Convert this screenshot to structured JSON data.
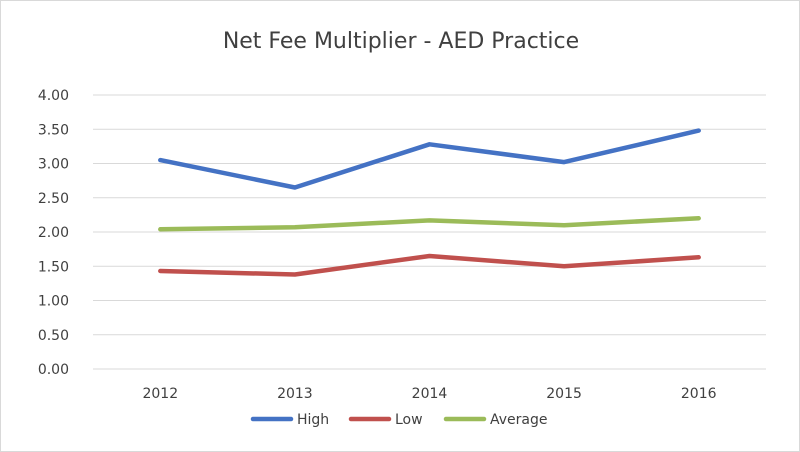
{
  "chart_data": {
    "type": "line",
    "title": "Net Fee Multiplier - AED Practice",
    "xlabel": "",
    "ylabel": "",
    "categories": [
      "2012",
      "2013",
      "2014",
      "2015",
      "2016"
    ],
    "y_ticks": [
      "0.00",
      "0.50",
      "1.00",
      "1.50",
      "2.00",
      "2.50",
      "3.00",
      "3.50",
      "4.00"
    ],
    "ylim": [
      0,
      4
    ],
    "grid": true,
    "legend_position": "bottom",
    "series": [
      {
        "name": "High",
        "color": "#4472c4",
        "values": [
          3.05,
          2.65,
          3.28,
          3.02,
          3.48
        ]
      },
      {
        "name": "Low",
        "color": "#c0504d",
        "values": [
          1.43,
          1.38,
          1.65,
          1.5,
          1.63
        ]
      },
      {
        "name": "Average",
        "color": "#9bbb59",
        "values": [
          2.04,
          2.07,
          2.17,
          2.1,
          2.2
        ]
      }
    ]
  }
}
